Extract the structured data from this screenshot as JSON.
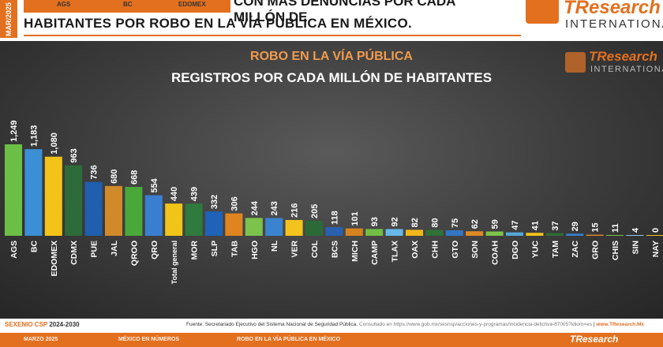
{
  "header": {
    "side_date": "MAR/2025",
    "top_labels": [
      "AGS",
      "BC",
      "EDOMEX"
    ],
    "headline_1": "CON MÁS DENUNCIAS POR CADA MILLÓN DE",
    "headline_2": "HABITANTES POR ROBO EN LA VÍA PÚBLICA EN MÉXICO.",
    "logo_brand": "TResearch",
    "logo_sub": "INTERNATIONAL"
  },
  "panel_logo": {
    "brand": "TResearch",
    "sub": "INTERNATIONAL"
  },
  "colors": {
    "accent": "#e3701f",
    "title_orange": "#f29b4c",
    "title_white": "#ffffff"
  },
  "chart_data": {
    "type": "bar",
    "title": "ROBO EN LA VÍA PÚBLICA",
    "subtitle": "REGISTROS POR CADA MILLÓN DE HABITANTES",
    "categories": [
      "AGS",
      "BC",
      "EDOMEX",
      "CDMX",
      "PUE",
      "JAL",
      "QROO",
      "QRO",
      "Total general",
      "MOR",
      "SLP",
      "TAB",
      "HGO",
      "NL",
      "VER",
      "COL",
      "BCS",
      "MICH",
      "CAMP",
      "TLAX",
      "OAX",
      "CHH",
      "GTO",
      "SON",
      "COAH",
      "DGO",
      "YUC",
      "TAM",
      "ZAC",
      "GRO",
      "CHIS",
      "SIN",
      "NAY"
    ],
    "values": [
      1249,
      1183,
      1080,
      963,
      736,
      680,
      668,
      554,
      440,
      439,
      332,
      306,
      244,
      243,
      216,
      205,
      118,
      101,
      93,
      92,
      82,
      80,
      75,
      62,
      59,
      47,
      41,
      37,
      29,
      15,
      11,
      4,
      0
    ],
    "value_labels": [
      "1,249",
      "1,183",
      "1,080",
      "963",
      "736",
      "680",
      "668",
      "554",
      "440",
      "439",
      "332",
      "306",
      "244",
      "243",
      "216",
      "205",
      "118",
      "101",
      "93",
      "92",
      "82",
      "80",
      "75",
      "62",
      "59",
      "47",
      "41",
      "37",
      "29",
      "15",
      "11",
      "4",
      "0"
    ],
    "bar_colors": [
      "#6cbf46",
      "#3b8fd4",
      "#f2c318",
      "#2e6b3a",
      "#1f5fae",
      "#d08a2a",
      "#4aa83a",
      "#3a7fcf",
      "#f0c419",
      "#2f7a3d",
      "#1f63b8",
      "#e0841f",
      "#7cc24c",
      "#3a84cf",
      "#f2c31c",
      "#2b6a37",
      "#2a60b0",
      "#d4831f",
      "#72bf44",
      "#67b8e8",
      "#f1b61a",
      "#2f7238",
      "#3476c6",
      "#e08a25",
      "#7fc24a",
      "#52a8d8",
      "#f1c21b",
      "#2f6e38",
      "#3a7fcf",
      "#e38a25",
      "#7cbf44",
      "#8fc7ea",
      "#f2c31c"
    ],
    "ylim": [
      0,
      1300
    ],
    "grid": false,
    "legend": "none"
  },
  "footer": {
    "left_label": "SEXENIO CSP",
    "left_years": "2024-2030",
    "source": "Fuente: Secretariado Ejecutivo del Sistema Nacional de Seguridad Pública.",
    "consulted": "Consultado en https://www.gob.mx/sesnsp/acciones-y-programas/incidencia-delictiva-87005?idiom=es",
    "site": "www.TResearch.Mx",
    "bar_items": [
      "MARZO 2025",
      "MÉXICO EN NÚMEROS",
      "ROBO EN LA VÍA PÚBLICA EN MÉXICO"
    ],
    "bar_logo": "TResearch"
  }
}
